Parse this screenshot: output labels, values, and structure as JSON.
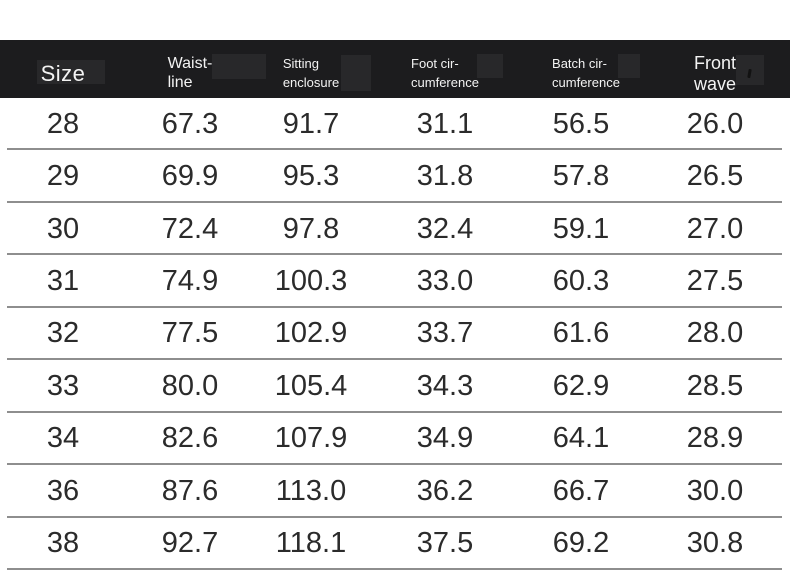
{
  "colors": {
    "header_bg": "#1c1c1e",
    "header_text": "#f3f3f3",
    "body_text": "#2b2b2b",
    "row_divider": "#8e8e8e",
    "page_bg": "#ffffff"
  },
  "table": {
    "columns": [
      {
        "line1": "Size",
        "line2": ""
      },
      {
        "line1": "Waist-",
        "line2": "line"
      },
      {
        "line1": "Sitting",
        "line2": "enclosure"
      },
      {
        "line1": "Foot cir-",
        "line2": "cumference"
      },
      {
        "line1": "Batch cir-",
        "line2": "cumference"
      },
      {
        "line1": "Front",
        "line2": "wave"
      }
    ],
    "rows": [
      {
        "cells": [
          "28",
          "67.3",
          "91.7",
          "31.1",
          "56.5",
          "26.0"
        ]
      },
      {
        "cells": [
          "29",
          "69.9",
          "95.3",
          "31.8",
          "57.8",
          "26.5"
        ]
      },
      {
        "cells": [
          "30",
          "72.4",
          "97.8",
          "32.4",
          "59.1",
          "27.0"
        ]
      },
      {
        "cells": [
          "31",
          "74.9",
          "100.3",
          "33.0",
          "60.3",
          "27.5"
        ]
      },
      {
        "cells": [
          "32",
          "77.5",
          "102.9",
          "33.7",
          "61.6",
          "28.0"
        ]
      },
      {
        "cells": [
          "33",
          "80.0",
          "105.4",
          "34.3",
          "62.9",
          "28.5"
        ]
      },
      {
        "cells": [
          "34",
          "82.6",
          "107.9",
          "34.9",
          "64.1",
          "28.9"
        ]
      },
      {
        "cells": [
          "36",
          "87.6",
          "113.0",
          "36.2",
          "66.7",
          "30.0"
        ]
      },
      {
        "cells": [
          "38",
          "92.7",
          "118.1",
          "37.5",
          "69.2",
          "30.8"
        ]
      }
    ]
  },
  "chart_data": {
    "type": "table",
    "title": "Garment size chart",
    "columns": [
      "Size",
      "Waist-line",
      "Sitting enclosure",
      "Foot cir-cumference",
      "Batch cir-cumference",
      "Front wave"
    ],
    "rows": [
      [
        28,
        67.3,
        91.7,
        31.1,
        56.5,
        26.0
      ],
      [
        29,
        69.9,
        95.3,
        31.8,
        57.8,
        26.5
      ],
      [
        30,
        72.4,
        97.8,
        32.4,
        59.1,
        27.0
      ],
      [
        31,
        74.9,
        100.3,
        33.0,
        60.3,
        27.5
      ],
      [
        32,
        77.5,
        102.9,
        33.7,
        61.6,
        28.0
      ],
      [
        33,
        80.0,
        105.4,
        34.3,
        62.9,
        28.5
      ],
      [
        34,
        82.6,
        107.9,
        34.9,
        64.1,
        28.9
      ],
      [
        36,
        87.6,
        113.0,
        36.2,
        66.7,
        30.0
      ],
      [
        38,
        92.7,
        118.1,
        37.5,
        69.2,
        30.8
      ]
    ]
  }
}
